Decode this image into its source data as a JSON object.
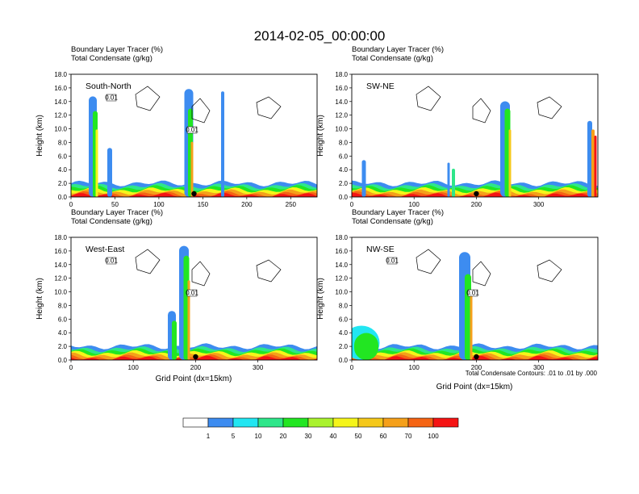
{
  "chart_data": {
    "type": "heatmap",
    "title": "2014-02-05_00:00:00",
    "panel_subtitles": [
      "Boundary Layer Tracer   (%)",
      "Total Condensate   (g/kg)"
    ],
    "ylabel": "Height (km)",
    "xlabel": "Grid Point (dx=15km)",
    "y_ticks": [
      "0.0",
      "2.0",
      "4.0",
      "6.0",
      "8.0",
      "10.0",
      "12.0",
      "14.0",
      "16.0",
      "18.0"
    ],
    "ylim": [
      0,
      18
    ],
    "contour_note": "Total Condensate Contours: .01 to .01 by .000",
    "colorbar": {
      "labels": [
        "1",
        "5",
        "10",
        "20",
        "30",
        "40",
        "50",
        "60",
        "70",
        "100"
      ],
      "colors": [
        "#ffffff",
        "#3d8cf0",
        "#22e6f2",
        "#2ee68a",
        "#22e622",
        "#aaf22e",
        "#f5f51a",
        "#f5c81a",
        "#f5a01a",
        "#f56414",
        "#f51414"
      ]
    },
    "panels": [
      {
        "name": "South-North",
        "xlim": [
          0,
          280
        ],
        "x_ticks": [
          "0",
          "50",
          "100",
          "150",
          "200",
          "250"
        ],
        "x_tick_values": [
          0,
          50,
          100,
          150,
          200,
          250
        ],
        "marker_x": 140,
        "contour_labels": [
          "0.01",
          "0.01"
        ]
      },
      {
        "name": "SW-NE",
        "xlim": [
          0,
          395
        ],
        "x_ticks": [
          "0",
          "100",
          "200",
          "300"
        ],
        "x_tick_values": [
          0,
          100,
          200,
          300
        ],
        "marker_x": 200,
        "contour_labels": []
      },
      {
        "name": "West-East",
        "xlim": [
          0,
          395
        ],
        "x_ticks": [
          "0",
          "100",
          "200",
          "300"
        ],
        "x_tick_values": [
          0,
          100,
          200,
          300
        ],
        "marker_x": 200,
        "contour_labels": [
          "0.01",
          "0.01"
        ]
      },
      {
        "name": "NW-SE",
        "xlim": [
          0,
          395
        ],
        "x_ticks": [
          "0",
          "100",
          "200",
          "300"
        ],
        "x_tick_values": [
          0,
          100,
          200,
          300
        ],
        "marker_x": 200,
        "contour_labels": [
          "0.01",
          "0.01"
        ]
      }
    ]
  }
}
